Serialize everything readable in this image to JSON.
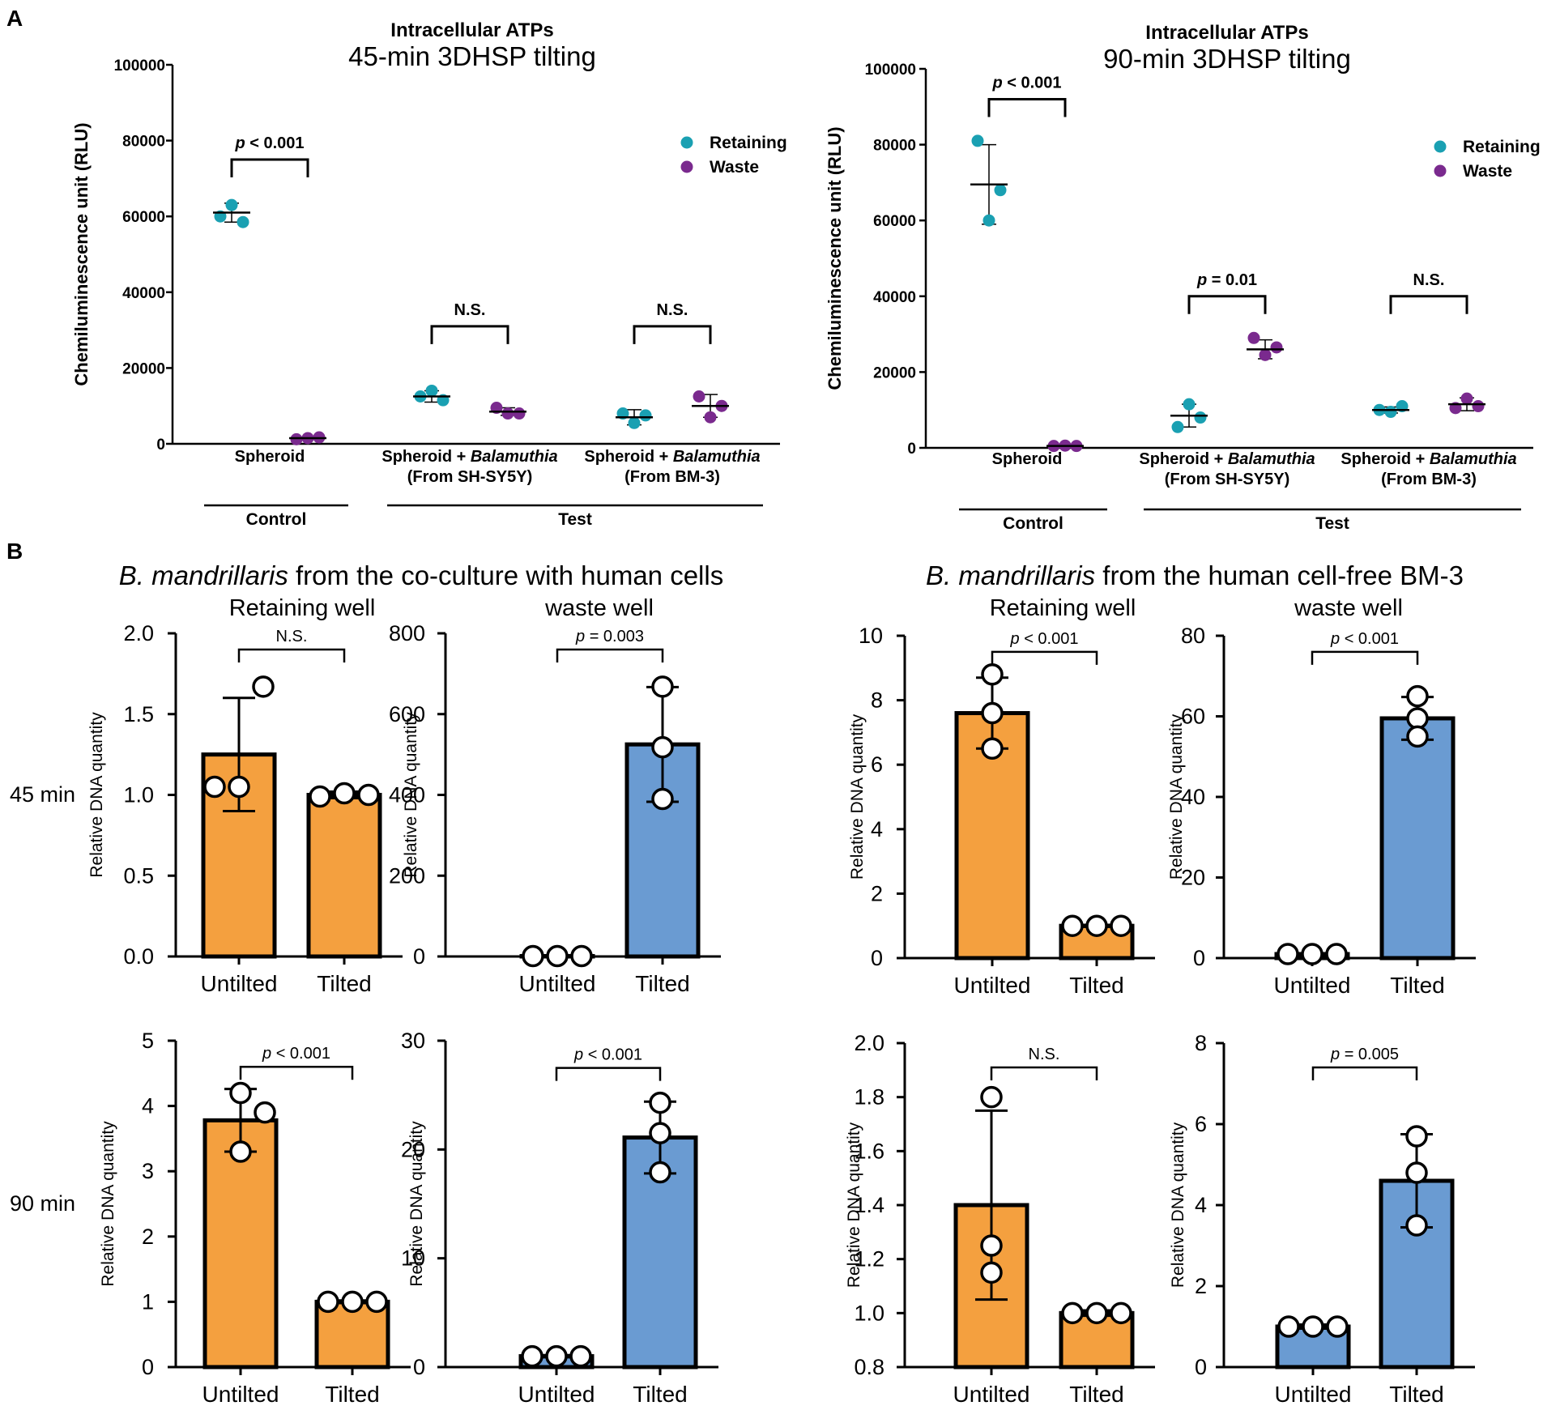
{
  "panel_labels": {
    "a": "A",
    "b": "B"
  },
  "row_labels": [
    "45 min",
    "90 min"
  ],
  "section_b_headers": {
    "left": {
      "italic": "B. mandrillaris",
      "rest": " from the co-culture with human cells"
    },
    "right": {
      "italic": "B. mandrillaris",
      "rest": " from the human cell-free BM-3"
    }
  },
  "colors": {
    "retaining": "#1aa0b2",
    "waste": "#7a2a8e",
    "untilted_bar": "#f4a03f",
    "tilted_bar_blue": "#6a9bd2"
  },
  "chart_data": [
    {
      "type": "scatter",
      "title": "Intracellular ATPs",
      "subtitle": "45-min 3DHSP tilting",
      "ylabel": "Chemiluminescence unit (RLU)",
      "ylim": [
        0,
        100000
      ],
      "yticks": [
        0,
        20000,
        40000,
        60000,
        80000,
        100000
      ],
      "ytick_labels": [
        "0",
        "20000",
        "40000",
        "60000",
        "80000",
        "100000"
      ],
      "legend": {
        "position": "top-right",
        "entries": [
          "Retaining",
          "Waste"
        ]
      },
      "categories": [
        {
          "lines": [
            [
              {
                "t": "Spheroid"
              }
            ]
          ]
        },
        {
          "lines": [
            [
              {
                "t": "Spheroid + "
              },
              {
                "t": "Balamuthia",
                "i": true
              }
            ],
            [
              {
                "t": "(From SH-SY5Y)"
              }
            ]
          ]
        },
        {
          "lines": [
            [
              {
                "t": "Spheroid + "
              },
              {
                "t": "Balamuthia",
                "i": true
              }
            ],
            [
              {
                "t": "(From BM-3)"
              }
            ]
          ]
        }
      ],
      "groups": [
        {
          "label": "Control",
          "from": 0,
          "to": 0
        },
        {
          "label": "Test",
          "from": 1,
          "to": 2
        }
      ],
      "series": [
        {
          "name": "Retaining",
          "points": [
            [
              60000,
              63000,
              58500
            ],
            [
              12500,
              14000,
              11500
            ],
            [
              8000,
              5500,
              7500
            ]
          ],
          "mean": [
            61000,
            12500,
            7000
          ],
          "sd": [
            2500,
            1500,
            2000
          ]
        },
        {
          "name": "Waste",
          "points": [
            [
              1200,
              1500,
              1700
            ],
            [
              9500,
              8000,
              8000
            ],
            [
              12500,
              7000,
              10000
            ]
          ],
          "mean": [
            1500,
            8500,
            10000
          ],
          "sd": [
            300,
            1000,
            3000
          ]
        }
      ],
      "significance": [
        {
          "category": 0,
          "italic": "p",
          "rest": " < 0.001",
          "y": 75000
        },
        {
          "category": 1,
          "italic": "",
          "rest": "N.S.",
          "y": 31000
        },
        {
          "category": 2,
          "italic": "",
          "rest": "N.S.",
          "y": 31000
        }
      ]
    },
    {
      "type": "scatter",
      "title": "Intracellular ATPs",
      "subtitle": "90-min 3DHSP tilting",
      "ylabel": "Chemiluminescence unit (RLU)",
      "ylim": [
        0,
        100000
      ],
      "yticks": [
        0,
        20000,
        40000,
        60000,
        80000,
        100000
      ],
      "ytick_labels": [
        "0",
        "20000",
        "40000",
        "60000",
        "80000",
        "100000"
      ],
      "legend": {
        "position": "top-right",
        "entries": [
          "Retaining",
          "Waste"
        ]
      },
      "categories": [
        {
          "lines": [
            [
              {
                "t": "Spheroid"
              }
            ]
          ]
        },
        {
          "lines": [
            [
              {
                "t": "Spheroid + "
              },
              {
                "t": "Balamuthia",
                "i": true
              }
            ],
            [
              {
                "t": "(From SH-SY5Y)"
              }
            ]
          ]
        },
        {
          "lines": [
            [
              {
                "t": "Spheroid + "
              },
              {
                "t": "Balamuthia",
                "i": true
              }
            ],
            [
              {
                "t": "(From BM-3)"
              }
            ]
          ]
        }
      ],
      "groups": [
        {
          "label": "Control",
          "from": 0,
          "to": 0
        },
        {
          "label": "Test",
          "from": 1,
          "to": 2
        }
      ],
      "series": [
        {
          "name": "Retaining",
          "points": [
            [
              81000,
              60000,
              68000
            ],
            [
              5500,
              11500,
              8000
            ],
            [
              10000,
              9500,
              11000
            ]
          ],
          "mean": [
            69500,
            8500,
            10000
          ],
          "sd": [
            10500,
            3000,
            800
          ]
        },
        {
          "name": "Waste",
          "points": [
            [
              500,
              600,
              500
            ],
            [
              29000,
              24500,
              26500
            ],
            [
              10500,
              13000,
              11000
            ]
          ],
          "mean": [
            500,
            26000,
            11500
          ],
          "sd": [
            100,
            2500,
            1700
          ]
        }
      ],
      "significance": [
        {
          "category": 0,
          "italic": "p",
          "rest": " < 0.001",
          "y": 92000
        },
        {
          "category": 1,
          "italic": "p",
          "rest": " = 0.01",
          "y": 40000
        },
        {
          "category": 2,
          "italic": "",
          "rest": "N.S.",
          "y": 40000
        }
      ]
    },
    {
      "type": "bar",
      "time": "45 min",
      "source": "co-culture",
      "title": "Retaining well",
      "ylabel": "Relative DNA quantity",
      "ylim": [
        0,
        2.0
      ],
      "yticks": [
        0,
        0.5,
        1.0,
        1.5,
        2.0
      ],
      "ytick_labels": [
        "0.0",
        "0.5",
        "1.0",
        "1.5",
        "2.0"
      ],
      "categories": [
        "Untilted",
        "Tilted"
      ],
      "values": [
        1.25,
        1.0
      ],
      "sd": [
        0.35,
        0.02
      ],
      "points": [
        [
          1.05,
          1.67,
          1.05
        ],
        [
          0.99,
          1.01,
          1.0
        ]
      ],
      "bar_colors": [
        "#f4a03f",
        "#f4a03f"
      ],
      "significance": {
        "italic": "",
        "rest": "N.S.",
        "y": 1.9
      }
    },
    {
      "type": "bar",
      "time": "45 min",
      "source": "co-culture",
      "title": "waste well",
      "ylabel": "Relative DNA quantity",
      "ylim": [
        0,
        800
      ],
      "yticks": [
        0,
        200,
        400,
        600,
        800
      ],
      "ytick_labels": [
        "0",
        "200",
        "400",
        "600",
        "800"
      ],
      "categories": [
        "Untilted",
        "Tilted"
      ],
      "values": [
        1,
        525
      ],
      "sd": [
        0.3,
        142
      ],
      "points": [
        [
          1,
          1,
          1
        ],
        [
          668,
          518,
          390
        ]
      ],
      "bar_colors": [
        "#f4a03f",
        "#6a9bd2"
      ],
      "significance": {
        "italic": "p",
        "rest": " = 0.003",
        "y": 760
      }
    },
    {
      "type": "bar",
      "time": "45 min",
      "source": "BM-3",
      "title": "Retaining well",
      "ylabel": "Relative DNA quantity",
      "ylim": [
        0,
        10
      ],
      "yticks": [
        0,
        2,
        4,
        6,
        8,
        10
      ],
      "ytick_labels": [
        "0",
        "2",
        "4",
        "6",
        "8",
        "10"
      ],
      "categories": [
        "Untilted",
        "Tilted"
      ],
      "values": [
        7.6,
        1.0
      ],
      "sd": [
        1.1,
        0.03
      ],
      "points": [
        [
          8.8,
          7.6,
          6.5
        ],
        [
          1.0,
          1.0,
          1.0
        ]
      ],
      "bar_colors": [
        "#f4a03f",
        "#f4a03f"
      ],
      "significance": {
        "italic": "p",
        "rest": " < 0.001",
        "y": 9.5
      }
    },
    {
      "type": "bar",
      "time": "45 min",
      "source": "BM-3",
      "title": "waste well",
      "ylabel": "Relative DNA quantity",
      "ylim": [
        0,
        80
      ],
      "yticks": [
        0,
        20,
        40,
        60,
        80
      ],
      "ytick_labels": [
        "0",
        "20",
        "40",
        "60",
        "80"
      ],
      "categories": [
        "Untilted",
        "Tilted"
      ],
      "values": [
        1,
        59.5
      ],
      "sd": [
        0.2,
        5.3
      ],
      "points": [
        [
          1,
          1,
          1
        ],
        [
          65,
          59.5,
          55
        ]
      ],
      "bar_colors": [
        "#6a9bd2",
        "#6a9bd2"
      ],
      "significance": {
        "italic": "p",
        "rest": " < 0.001",
        "y": 76
      }
    },
    {
      "type": "bar",
      "time": "90 min",
      "source": "co-culture",
      "title": "",
      "ylabel": "Relative DNA quantity",
      "ylim": [
        0,
        5
      ],
      "yticks": [
        0,
        1,
        2,
        3,
        4,
        5
      ],
      "ytick_labels": [
        "0",
        "1",
        "2",
        "3",
        "4",
        "5"
      ],
      "categories": [
        "Untilted",
        "Tilted"
      ],
      "values": [
        3.78,
        1.0
      ],
      "sd": [
        0.48,
        0.02
      ],
      "points": [
        [
          4.2,
          3.3,
          3.9
        ],
        [
          1.0,
          1.0,
          1.0
        ]
      ],
      "bar_colors": [
        "#f4a03f",
        "#f4a03f"
      ],
      "significance": {
        "italic": "p",
        "rest": " < 0.001",
        "y": 4.6
      }
    },
    {
      "type": "bar",
      "time": "90 min",
      "source": "co-culture",
      "title": "",
      "ylabel": "Relative DNA quantity",
      "ylim": [
        0,
        30
      ],
      "yticks": [
        0,
        10,
        20,
        30
      ],
      "ytick_labels": [
        "0",
        "10",
        "20",
        "30"
      ],
      "categories": [
        "Untilted",
        "Tilted"
      ],
      "values": [
        1,
        21.1
      ],
      "sd": [
        0.1,
        3.3
      ],
      "points": [
        [
          1,
          1,
          1
        ],
        [
          24.3,
          21.5,
          17.9
        ]
      ],
      "bar_colors": [
        "#6a9bd2",
        "#6a9bd2"
      ],
      "significance": {
        "italic": "p",
        "rest": " < 0.001",
        "y": 27.5
      }
    },
    {
      "type": "bar",
      "time": "90 min",
      "source": "BM-3",
      "title": "",
      "ylabel": "Relative DNA quantity",
      "ylim": [
        0.8,
        2.0
      ],
      "yticks": [
        0.8,
        1.0,
        1.2,
        1.4,
        1.6,
        1.8,
        2.0
      ],
      "ytick_labels": [
        "0.8",
        "1.0",
        "1.2",
        "1.4",
        "1.6",
        "1.8",
        "2.0"
      ],
      "categories": [
        "Untilted",
        "Tilted"
      ],
      "values": [
        1.4,
        1.0
      ],
      "sd": [
        0.35,
        0.01
      ],
      "points": [
        [
          1.8,
          1.25,
          1.15
        ],
        [
          1.0,
          1.0,
          1.0
        ]
      ],
      "bar_colors": [
        "#f4a03f",
        "#f4a03f"
      ],
      "significance": {
        "italic": "",
        "rest": "N.S.",
        "y": 1.91
      }
    },
    {
      "type": "bar",
      "time": "90 min",
      "source": "BM-3",
      "title": "",
      "ylabel": "Relative DNA quantity",
      "ylim": [
        0,
        8
      ],
      "yticks": [
        0,
        2,
        4,
        6,
        8
      ],
      "ytick_labels": [
        "0",
        "2",
        "4",
        "6",
        "8"
      ],
      "categories": [
        "Untilted",
        "Tilted"
      ],
      "values": [
        1.0,
        4.6
      ],
      "sd": [
        0.05,
        1.15
      ],
      "points": [
        [
          1.0,
          1.0,
          1.0
        ],
        [
          5.7,
          4.8,
          3.5
        ]
      ],
      "bar_colors": [
        "#6a9bd2",
        "#6a9bd2"
      ],
      "significance": {
        "italic": "p",
        "rest": " = 0.005",
        "y": 7.4
      }
    }
  ]
}
